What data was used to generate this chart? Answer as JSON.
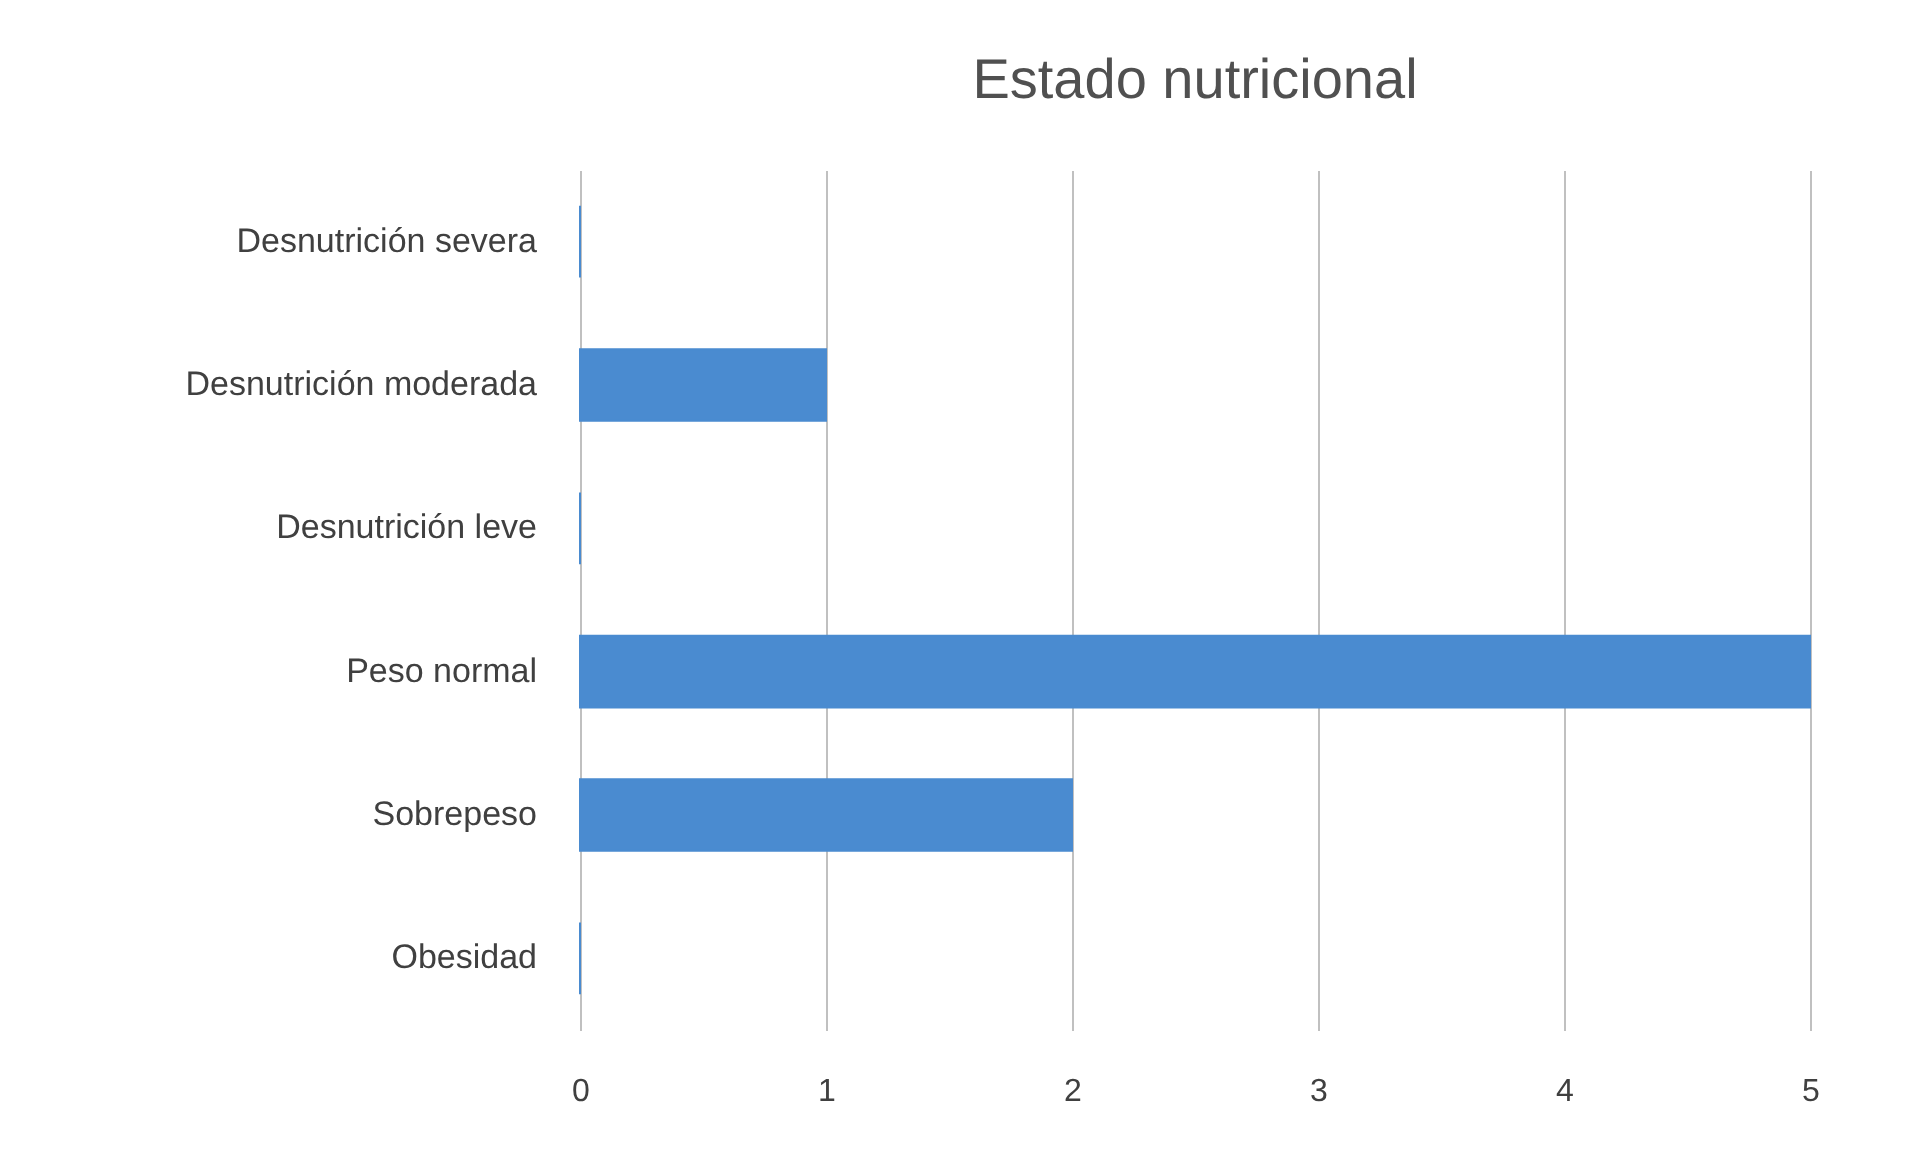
{
  "chart_data": {
    "type": "bar",
    "orientation": "horizontal",
    "title": "Estado nutricional",
    "categories": [
      "Desnutrición severa",
      "Desnutrición moderada",
      "Desnutrición leve",
      "Peso normal",
      "Sobrepeso",
      "Obesidad"
    ],
    "values": [
      0,
      1,
      0,
      5,
      2,
      0
    ],
    "color": "#4a8bd0",
    "xlim": [
      0,
      5
    ],
    "xticks": [
      0,
      1,
      2,
      3,
      4,
      5
    ],
    "grid": "x"
  }
}
